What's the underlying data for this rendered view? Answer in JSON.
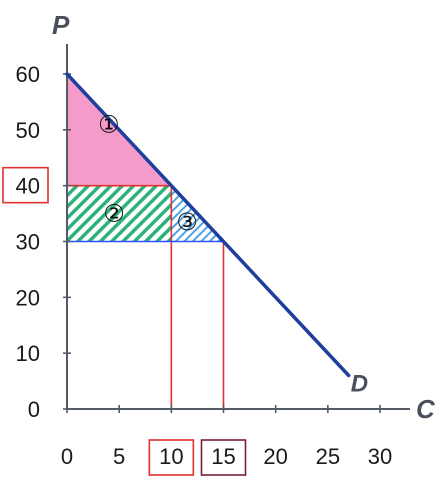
{
  "chart_data": {
    "type": "line",
    "title": "",
    "xlabel": "C",
    "ylabel": "P",
    "xlim": [
      0,
      30
    ],
    "ylim": [
      0,
      60
    ],
    "x_ticks": [
      "0",
      "5",
      "10",
      "15",
      "20",
      "25",
      "30"
    ],
    "y_ticks": [
      "0",
      "10",
      "20",
      "30",
      "40",
      "50",
      "60"
    ],
    "series": [
      {
        "name": "D",
        "points": [
          [
            0,
            60
          ],
          [
            27,
            6
          ]
        ],
        "color": "#1f3f9e"
      }
    ],
    "highlighted_x": [
      10,
      15
    ],
    "highlighted_y": [
      40
    ],
    "guide_lines": [
      {
        "from": [
          0,
          40
        ],
        "to": [
          10,
          40
        ],
        "color": "#e03030"
      },
      {
        "from": [
          10,
          0
        ],
        "to": [
          10,
          40
        ],
        "color": "#e03030"
      },
      {
        "from": [
          0,
          30
        ],
        "to": [
          15,
          30
        ],
        "color": "#3050ff"
      },
      {
        "from": [
          15,
          0
        ],
        "to": [
          15,
          30
        ],
        "color": "#e03030"
      }
    ],
    "regions": [
      {
        "label": "①",
        "polygon": [
          [
            0,
            60
          ],
          [
            0,
            40
          ],
          [
            10,
            40
          ]
        ],
        "fill": "#f59bc9",
        "pattern": "solid"
      },
      {
        "label": "②",
        "polygon": [
          [
            0,
            40
          ],
          [
            10,
            40
          ],
          [
            10,
            30
          ],
          [
            0,
            30
          ]
        ],
        "fill": "#2db37a",
        "pattern": "hatch"
      },
      {
        "label": "③",
        "polygon": [
          [
            10,
            40
          ],
          [
            15,
            30
          ],
          [
            10,
            30
          ]
        ],
        "fill": "#4aa3e8",
        "pattern": "hatch"
      }
    ],
    "region_label_positions": [
      [
        4,
        51
      ],
      [
        4.5,
        35
      ],
      [
        11.5,
        33.5
      ]
    ],
    "grid": false,
    "legend": "none"
  }
}
